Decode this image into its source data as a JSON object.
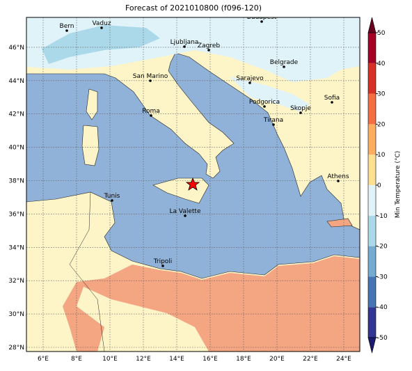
{
  "title": "Forecast of 2021010800 (f096-120)",
  "map": {
    "lon_ticks": [
      "6°E",
      "8°E",
      "10°E",
      "12°E",
      "14°E",
      "16°E",
      "18°E",
      "20°E",
      "22°E",
      "24°E"
    ],
    "lat_ticks": [
      "28°N",
      "30°N",
      "32°N",
      "34°N",
      "36°N",
      "38°N",
      "40°N",
      "42°N",
      "44°N",
      "46°N"
    ],
    "cities": [
      "Bern",
      "Vaduz",
      "Budapest",
      "Ljubljana",
      "Zagreb",
      "San Marino",
      "Belgrade",
      "Sarajevo",
      "Sofia",
      "Roma",
      "Podgorica",
      "Skopje",
      "Tirana",
      "Athens",
      "Tunis",
      "La Valette",
      "Tripoli"
    ]
  },
  "colorbar": {
    "label": "Min Temperature (°C)",
    "lim": [
      -50,
      50
    ],
    "ticks": [
      -50,
      -40,
      -30,
      -20,
      -10,
      0,
      10,
      20,
      30,
      40,
      50
    ],
    "colors": [
      "#313695",
      "#4575b4",
      "#74add1",
      "#abd9e9",
      "#e0f3f8",
      "#fee090",
      "#fdae61",
      "#f46d43",
      "#d73027",
      "#a50026"
    ],
    "under_color": "#1a1a6e",
    "over_color": "#67001f"
  }
}
